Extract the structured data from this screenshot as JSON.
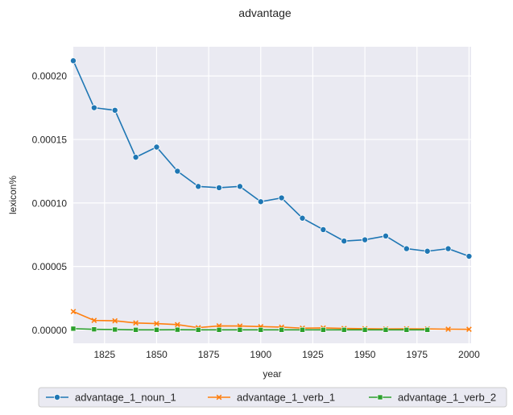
{
  "chart_data": {
    "type": "line",
    "title": "advantage",
    "xlabel": "year",
    "ylabel": "lexicon%",
    "xlim": [
      1810,
      2001
    ],
    "ylim": [
      -1.05e-05,
      0.000223
    ],
    "xticks": [
      1825,
      1850,
      1875,
      1900,
      1925,
      1950,
      1975,
      2000
    ],
    "xtick_labels": [
      "1825",
      "1850",
      "1875",
      "1900",
      "1925",
      "1950",
      "1975",
      "2000"
    ],
    "yticks": [
      0,
      5e-05,
      0.0001,
      0.00015,
      0.0002
    ],
    "ytick_labels": [
      "0.00000",
      "0.00005",
      "0.00010",
      "0.00015",
      "0.00020"
    ],
    "grid": true,
    "legend_position": "bottom-center",
    "x": [
      1810,
      1820,
      1830,
      1840,
      1850,
      1860,
      1870,
      1880,
      1890,
      1900,
      1910,
      1920,
      1930,
      1940,
      1950,
      1960,
      1970,
      1980,
      1990,
      2000
    ],
    "series": [
      {
        "name": "advantage_1_noun_1",
        "color": "#1f77b4",
        "marker": "circle",
        "values": [
          0.000212,
          0.000175,
          0.000173,
          0.000136,
          0.000144,
          0.000125,
          0.000113,
          0.000112,
          0.000113,
          0.000101,
          0.000104,
          8.8e-05,
          7.9e-05,
          7e-05,
          7.1e-05,
          7.4e-05,
          6.4e-05,
          6.2e-05,
          6.4e-05,
          5.8e-05
        ]
      },
      {
        "name": "advantage_1_verb_1",
        "color": "#ff7f0e",
        "marker": "x",
        "values": [
          1.45e-05,
          7.5e-06,
          7.2e-06,
          5.5e-06,
          5e-06,
          4.2e-06,
          1.8e-06,
          3.2e-06,
          3.1e-06,
          2.6e-06,
          2.2e-06,
          1.4e-06,
          1.6e-06,
          1.2e-06,
          1e-06,
          8e-07,
          9e-07,
          8e-07,
          6e-07,
          5e-07
        ]
      },
      {
        "name": "advantage_1_verb_2",
        "color": "#2ca02c",
        "marker": "square",
        "values": [
          1e-06,
          5e-07,
          3e-07,
          1e-07,
          1e-07,
          2e-07,
          1e-07,
          1e-07,
          1e-07,
          1e-07,
          1e-07,
          1e-07,
          1e-07,
          1e-07,
          1e-07,
          1e-07,
          1e-07,
          1e-07,
          null,
          null
        ]
      }
    ]
  }
}
